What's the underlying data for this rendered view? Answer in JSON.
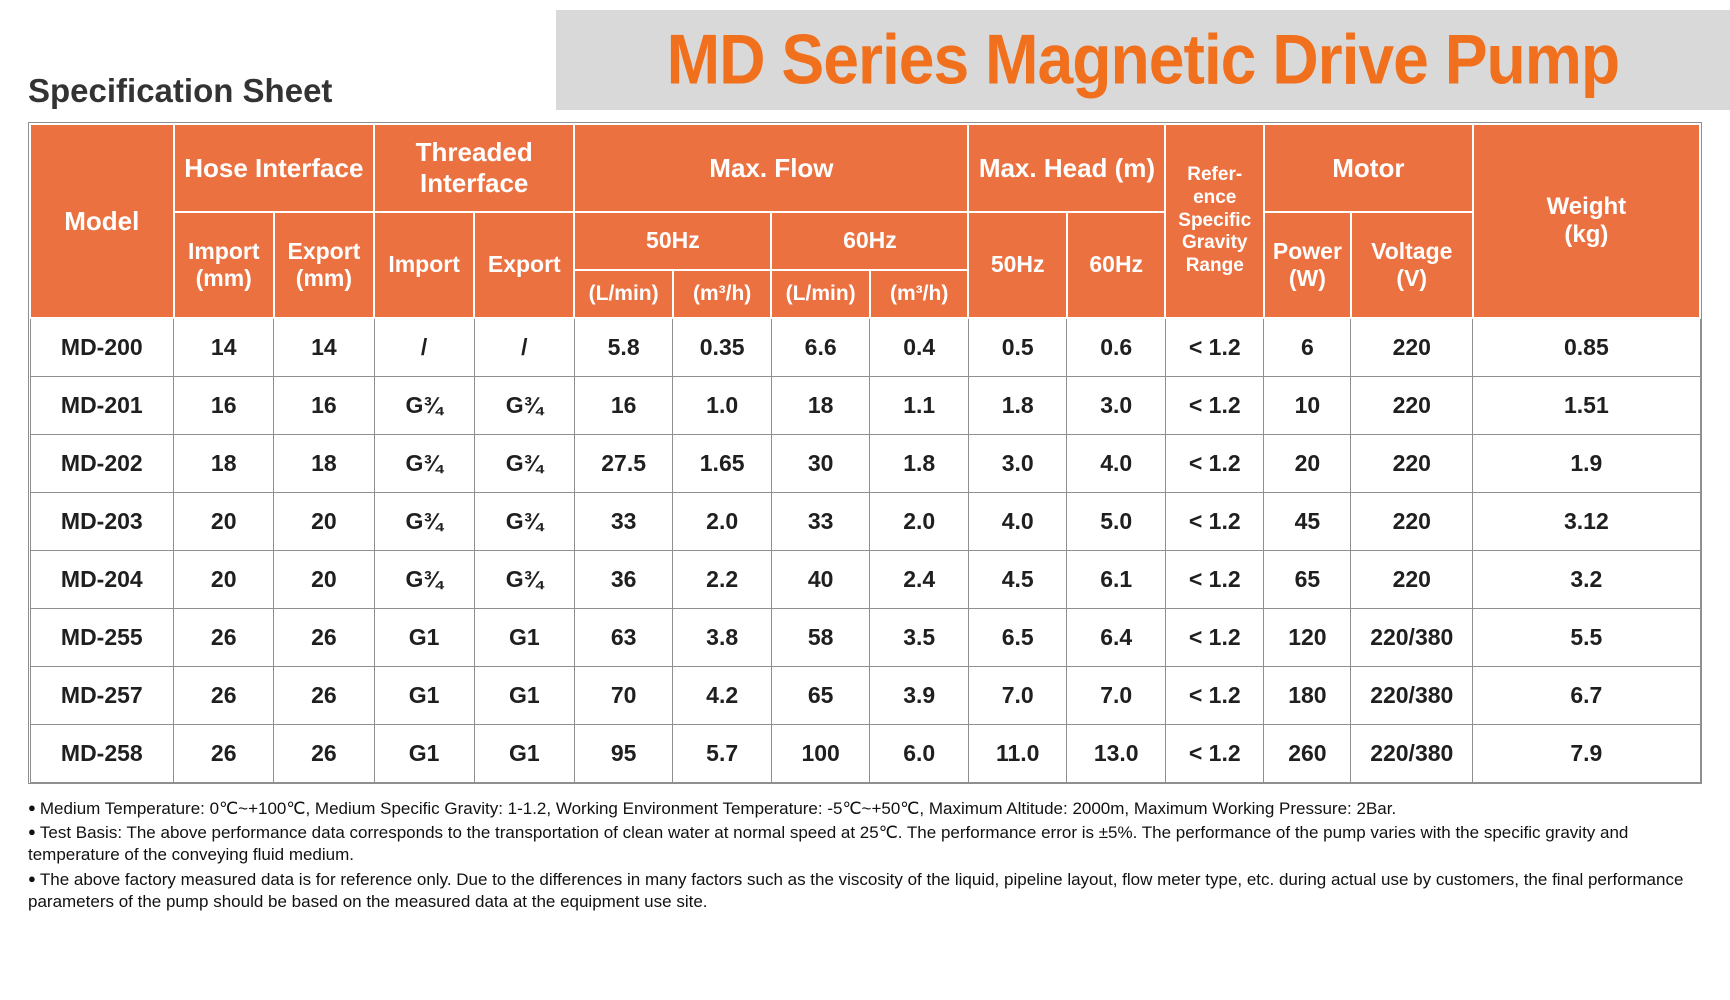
{
  "page": {
    "subtitle": "Specification Sheet",
    "title": "MD Series Magnetic Drive Pump"
  },
  "colors": {
    "header_orange": "#EC7140",
    "title_orange": "#F0701E",
    "banner_gray": "#D9D9D9",
    "border_gray": "#8F8F8F"
  },
  "table": {
    "header": {
      "model": "Model",
      "hose_interface": "Hose Interface",
      "threaded_interface": "Threaded\nInterface",
      "max_flow": "Max. Flow",
      "max_head": "Max. Head (m)",
      "reference": "Refer-\nence\nSpecific\nGravity\nRange",
      "motor": "Motor",
      "weight": "Weight\n(kg)",
      "import_mm": "Import\n(mm)",
      "export_mm": "Export\n(mm)",
      "import": "Import",
      "export": "Export",
      "flow_50hz": "50Hz",
      "flow_60hz": "60Hz",
      "head_50hz": "50Hz",
      "head_60hz": "60Hz",
      "power": "Power\n(W)",
      "voltage": "Voltage\n(V)",
      "lmin_50": "(L/min)",
      "m3h_50": "(m³/h)",
      "lmin_60": "(L/min)",
      "m3h_60": "(m³/h)"
    },
    "rows": [
      [
        "MD-200",
        "14",
        "14",
        "/",
        "/",
        "5.8",
        "0.35",
        "6.6",
        "0.4",
        "0.5",
        "0.6",
        "< 1.2",
        "6",
        "220",
        "0.85"
      ],
      [
        "MD-201",
        "16",
        "16",
        "G¾",
        "G¾",
        "16",
        "1.0",
        "18",
        "1.1",
        "1.8",
        "3.0",
        "< 1.2",
        "10",
        "220",
        "1.51"
      ],
      [
        "MD-202",
        "18",
        "18",
        "G¾",
        "G¾",
        "27.5",
        "1.65",
        "30",
        "1.8",
        "3.0",
        "4.0",
        "< 1.2",
        "20",
        "220",
        "1.9"
      ],
      [
        "MD-203",
        "20",
        "20",
        "G¾",
        "G¾",
        "33",
        "2.0",
        "33",
        "2.0",
        "4.0",
        "5.0",
        "< 1.2",
        "45",
        "220",
        "3.12"
      ],
      [
        "MD-204",
        "20",
        "20",
        "G¾",
        "G¾",
        "36",
        "2.2",
        "40",
        "2.4",
        "4.5",
        "6.1",
        "< 1.2",
        "65",
        "220",
        "3.2"
      ],
      [
        "MD-255",
        "26",
        "26",
        "G1",
        "G1",
        "63",
        "3.8",
        "58",
        "3.5",
        "6.5",
        "6.4",
        "< 1.2",
        "120",
        "220/380",
        "5.5"
      ],
      [
        "MD-257",
        "26",
        "26",
        "G1",
        "G1",
        "70",
        "4.2",
        "65",
        "3.9",
        "7.0",
        "7.0",
        "< 1.2",
        "180",
        "220/380",
        "6.7"
      ],
      [
        "MD-258",
        "26",
        "26",
        "G1",
        "G1",
        "95",
        "5.7",
        "100",
        "6.0",
        "11.0",
        "13.0",
        "< 1.2",
        "260",
        "220/380",
        "7.9"
      ]
    ]
  },
  "notes": {
    "bullet": "●",
    "items": [
      "Medium Temperature: 0℃~+100℃, Medium Specific Gravity: 1-1.2, Working Environment Temperature: -5℃~+50℃, Maximum Altitude: 2000m, Maximum Working Pressure: 2Bar.",
      "Test Basis: The above performance data corresponds to the transportation of clean water at normal speed at 25℃. The performance error is ±5%. The performance of the pump varies with the specific gravity and temperature of the conveying fluid medium.",
      "The above factory measured data is for reference only. Due to the differences in many factors such as the viscosity of the liquid, pipeline layout, flow meter type, etc. during actual use by customers, the final performance parameters of the pump should be based on the measured data at the equipment use site."
    ]
  }
}
